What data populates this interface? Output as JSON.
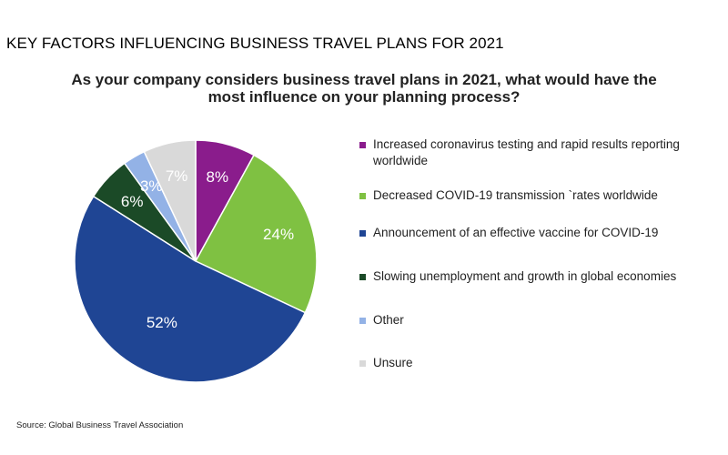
{
  "headline": "KEY FACTORS INFLUENCING BUSINESS TRAVEL PLANS FOR 2021",
  "question_lines": [
    "As your company considers business travel plans in 2021, what would have the",
    "most influence on your planning process?"
  ],
  "source": "Source: Global Business Travel Association",
  "chart_data": {
    "type": "pie",
    "title": "As your company considers business travel plans in 2021, what would have the most influence on your planning process?",
    "legend_position": "right",
    "slices": [
      {
        "label": "Increased coronavirus testing and rapid results reporting worldwide",
        "value": 8,
        "value_label": "8%",
        "color": "#8a1c8c"
      },
      {
        "label": "Decreased COVID-19 transmission `rates worldwide",
        "value": 24,
        "value_label": "24%",
        "color": "#7fc142"
      },
      {
        "label": "Announcement of an effective vaccine for COVID-19",
        "value": 52,
        "value_label": "52%",
        "color": "#1f4594"
      },
      {
        "label": "Slowing unemployment and growth in global economies",
        "value": 6,
        "value_label": "6%",
        "color": "#1b4a27"
      },
      {
        "label": "Other",
        "value": 3,
        "value_label": "3%",
        "color": "#93b2e6"
      },
      {
        "label": "Unsure",
        "value": 7,
        "value_label": "7%",
        "color": "#d9d9d9"
      }
    ]
  }
}
